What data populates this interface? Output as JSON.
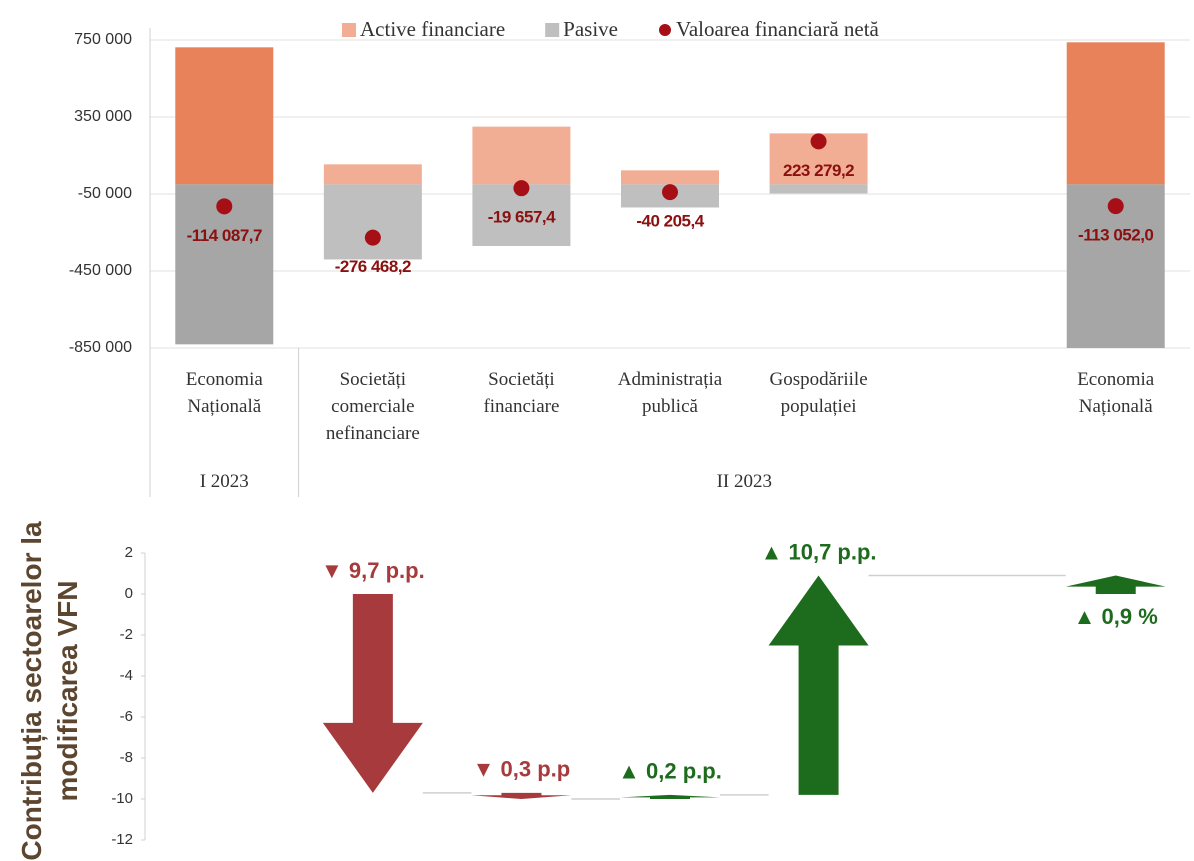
{
  "chart_data": [
    {
      "type": "bar",
      "categories": [
        "Economia Națională",
        "Societăți comerciale nefinanciare",
        "Societăți financiare",
        "Administrația publică",
        "Gospodăriile populației",
        null,
        "Economia Națională"
      ],
      "groups": [
        {
          "label": "I 2023",
          "span": 1
        },
        {
          "label": "II 2023",
          "span": 6
        }
      ],
      "series": [
        {
          "name": "Active financiare",
          "color": "#f2ae95",
          "colors": [
            "#e8825a",
            "#f2ae95",
            "#f2ae95",
            "#f2ae95",
            "#f2ae95",
            null,
            "#e8825a"
          ],
          "values": [
            712000,
            104000,
            300000,
            73000,
            265000,
            null,
            738000
          ]
        },
        {
          "name": "Pasive",
          "color": "#bfbfbf",
          "colors": [
            "#a6a6a6",
            "#bfbfbf",
            "#bfbfbf",
            "#bfbfbf",
            "#bfbfbf",
            null,
            "#a6a6a6"
          ],
          "values": [
            -831000,
            -390000,
            -320000,
            -120000,
            -47000,
            null,
            -850000
          ]
        },
        {
          "name": "Valoarea financiară netă",
          "type": "scatter",
          "color": "#a50f15",
          "values": [
            -114087.7,
            -276468.2,
            -19657.4,
            -40205.4,
            223279.2,
            null,
            -113052.0
          ],
          "value_labels": [
            "-114 087,7",
            "-276 468,2",
            "-19 657,4",
            "-40 205,4",
            "223 279,2",
            null,
            "-113 052,0"
          ]
        }
      ],
      "ylim": [
        -850000,
        750000
      ],
      "yticks": [
        {
          "value": 750000,
          "label": "750 000"
        },
        {
          "value": 350000,
          "label": "350 000"
        },
        {
          "value": -50000,
          "label": "-50 000"
        },
        {
          "value": -450000,
          "label": "-450 000"
        },
        {
          "value": -850000,
          "label": "-850 000"
        }
      ],
      "grid": true
    },
    {
      "type": "waterfall",
      "ylabel": "Contribuția sectoarelor la modificarea VFN",
      "values": [
        null,
        -9.7,
        -0.3,
        0.2,
        10.7,
        null,
        0.9
      ],
      "measures": [
        null,
        "relative",
        "relative",
        "relative",
        "relative",
        null,
        "total"
      ],
      "value_labels": [
        null,
        "▼ 9,7 p.p.",
        "▼ 0,3 p.p",
        "▲ 0,2 p.p.",
        "▲ 10,7 p.p.",
        null,
        "▲ 0,9 %"
      ],
      "increase_color": "#1d6b1d",
      "decrease_color": "#a63a3c",
      "ylim": [
        -12,
        2
      ],
      "yticks": [
        2,
        0,
        -2,
        -4,
        -6,
        -8,
        -10,
        -12
      ]
    }
  ]
}
